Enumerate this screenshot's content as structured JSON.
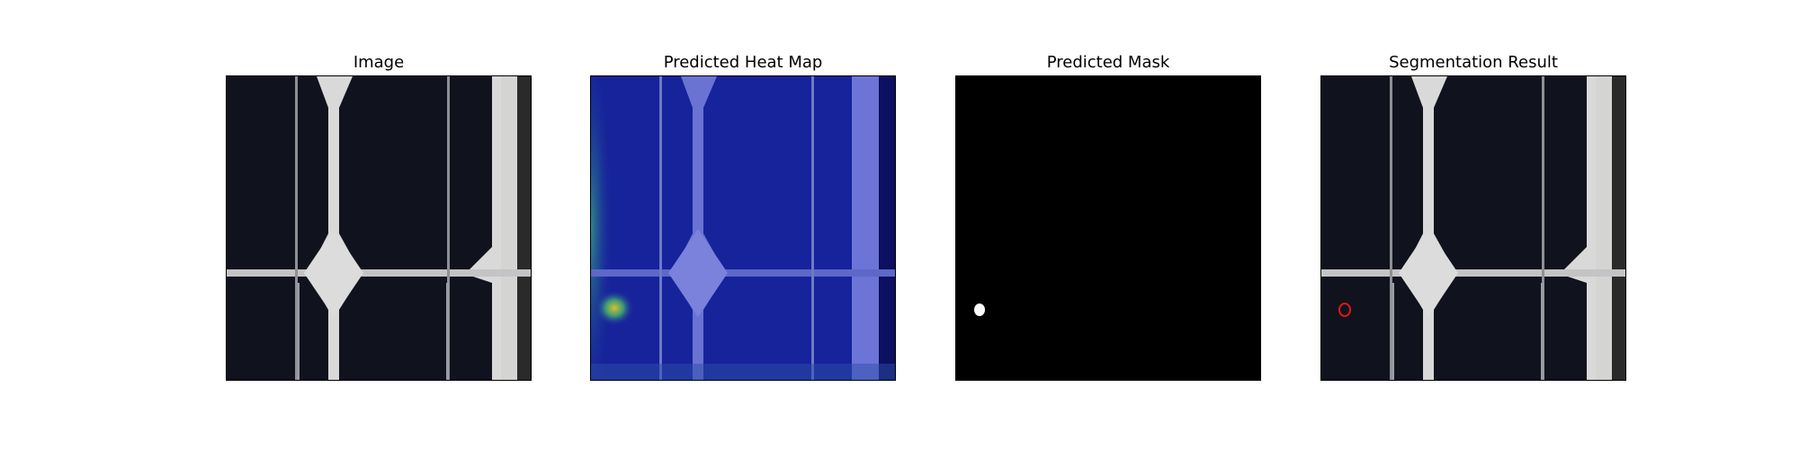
{
  "panels": [
    {
      "title": "Image"
    },
    {
      "title": "Predicted Heat Map"
    },
    {
      "title": "Predicted Mask"
    },
    {
      "title": "Segmentation Result"
    }
  ],
  "colors": {
    "cell_dark": "#10121d",
    "backsheet": "#d8d8d6",
    "busbar": "#bfc0c4",
    "frame_edge": "#3a3a3a",
    "heat_base": "#1a2a9a",
    "heat_hot": "#c8c028",
    "mask_bg": "#000000",
    "mask_fg": "#ffffff",
    "contour": "#e01818"
  }
}
